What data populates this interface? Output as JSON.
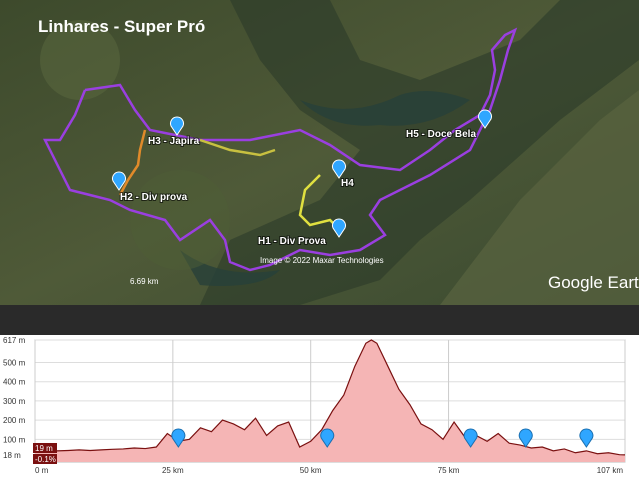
{
  "map": {
    "title": "Linhares - Super Pró",
    "places": [
      "H3 - Japira",
      "H2 - Div prova",
      "H4",
      "H1 - Div Prova",
      "H5 - Doce Bela"
    ],
    "credit": "Image © 2022 Maxar Technologies",
    "scale": "6.69 km",
    "brand": "Google Earth"
  },
  "chart_data": {
    "type": "area",
    "color": "#f5b5b5",
    "line_color": "#7a1010",
    "x": [
      0,
      2,
      4,
      6,
      8,
      10,
      12,
      14,
      16,
      18,
      20,
      22,
      24,
      26,
      28,
      30,
      32,
      34,
      36,
      38,
      40,
      42,
      44,
      46,
      48,
      50,
      52,
      54,
      56,
      58,
      60,
      61,
      62,
      64,
      66,
      68,
      70,
      72,
      74,
      76,
      78,
      80,
      82,
      84,
      86,
      88,
      90,
      92,
      94,
      96,
      98,
      100,
      102,
      104,
      106,
      107
    ],
    "values": [
      40,
      45,
      40,
      42,
      45,
      42,
      45,
      48,
      50,
      55,
      52,
      60,
      130,
      90,
      100,
      160,
      140,
      200,
      180,
      150,
      210,
      120,
      170,
      190,
      60,
      90,
      150,
      250,
      330,
      480,
      600,
      617,
      600,
      480,
      360,
      280,
      180,
      150,
      100,
      190,
      110,
      120,
      90,
      130,
      80,
      70,
      55,
      60,
      40,
      50,
      30,
      40,
      25,
      30,
      20,
      19
    ],
    "markers_km": [
      26,
      53,
      79,
      89,
      100
    ],
    "readout": [
      "19 m",
      "-0.1%"
    ],
    "xlim": [
      0,
      107
    ],
    "xticks": [
      {
        "value": 0,
        "label": "0 m"
      },
      {
        "value": 25,
        "label": "25 km"
      },
      {
        "value": 50,
        "label": "50 km"
      },
      {
        "value": 75,
        "label": "75 km"
      },
      {
        "value": 107,
        "label": "107 km"
      }
    ],
    "ylim": [
      -18,
      617
    ],
    "yticks": [
      {
        "value": 617,
        "label": "617 m"
      },
      {
        "value": 500,
        "label": "500 m"
      },
      {
        "value": 400,
        "label": "400 m"
      },
      {
        "value": 300,
        "label": "300 m"
      },
      {
        "value": 200,
        "label": "200 m"
      },
      {
        "value": 100,
        "label": "100 m"
      },
      {
        "value": 18,
        "label": "18 m"
      }
    ],
    "grid": true
  }
}
